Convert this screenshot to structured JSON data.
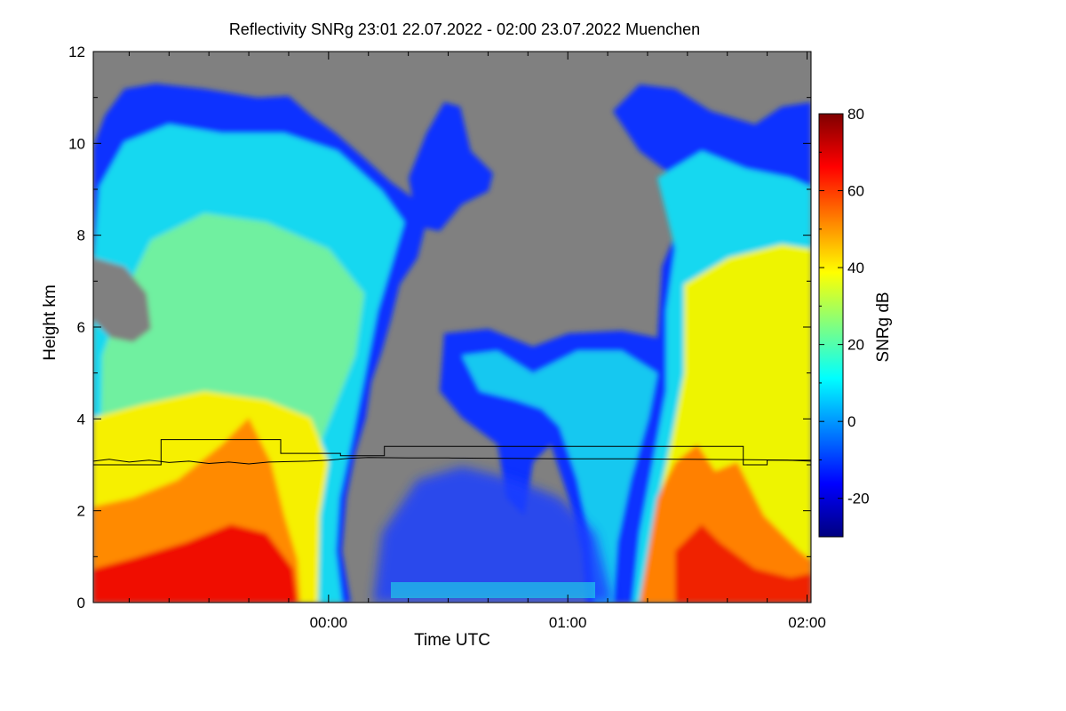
{
  "chart_data": {
    "type": "heatmap",
    "title": "Reflectivity SNRg   23:01 22.07.2022 - 02:00 23.07.2022 Muenchen",
    "xlabel": "Time UTC",
    "ylabel": "Height km",
    "xlim": [
      "23:01",
      "02:01"
    ],
    "ylim": [
      0,
      12
    ],
    "x_ticks": [
      {
        "label": "00:00",
        "value": "00:00"
      },
      {
        "label": "01:00",
        "value": "01:00"
      },
      {
        "label": "02:00",
        "value": "02:00"
      }
    ],
    "y_ticks": [
      {
        "label": "0",
        "value": 0
      },
      {
        "label": "2",
        "value": 2
      },
      {
        "label": "4",
        "value": 4
      },
      {
        "label": "6",
        "value": 6
      },
      {
        "label": "8",
        "value": 8
      },
      {
        "label": "10",
        "value": 10
      },
      {
        "label": "12",
        "value": 12
      }
    ],
    "colorbar": {
      "label": "SNRg dB",
      "range": [
        -30,
        80
      ],
      "ticks": [
        {
          "label": "-20",
          "value": -20
        },
        {
          "label": "0",
          "value": 0
        },
        {
          "label": "20",
          "value": 20
        },
        {
          "label": "40",
          "value": 40
        },
        {
          "label": "60",
          "value": 60
        },
        {
          "label": "80",
          "value": 80
        }
      ],
      "colormap": [
        "#00007f",
        "#0000ff",
        "#0080ff",
        "#00ffff",
        "#80ff80",
        "#ffff00",
        "#ff8000",
        "#ff0000",
        "#7f0000"
      ]
    },
    "no_data_color": "#808080",
    "overlay_lines": [
      {
        "style": "step",
        "color": "#000000",
        "points": [
          [
            "23:01",
            3.0
          ],
          [
            "23:18",
            3.0
          ],
          [
            "23:18",
            3.55
          ],
          [
            "23:48",
            3.55
          ],
          [
            "23:48",
            3.25
          ],
          [
            "00:03",
            3.25
          ],
          [
            "00:03",
            3.2
          ],
          [
            "00:14",
            3.2
          ],
          [
            "00:14",
            3.4
          ],
          [
            "01:44",
            3.4
          ],
          [
            "01:44",
            3.0
          ],
          [
            "01:50",
            3.0
          ],
          [
            "01:50",
            3.1
          ],
          [
            "02:01",
            3.1
          ]
        ]
      },
      {
        "style": "line",
        "color": "#000000",
        "points": [
          [
            "23:01",
            3.08
          ],
          [
            "23:05",
            3.12
          ],
          [
            "23:10",
            3.06
          ],
          [
            "23:15",
            3.1
          ],
          [
            "23:20",
            3.05
          ],
          [
            "23:25",
            3.08
          ],
          [
            "23:30",
            3.03
          ],
          [
            "23:35",
            3.06
          ],
          [
            "23:40",
            3.02
          ],
          [
            "23:45",
            3.06
          ],
          [
            "23:50",
            3.07
          ],
          [
            "23:55",
            3.08
          ],
          [
            "00:00",
            3.1
          ],
          [
            "00:05",
            3.14
          ],
          [
            "00:10",
            3.16
          ],
          [
            "00:20",
            3.15
          ],
          [
            "00:30",
            3.15
          ],
          [
            "00:45",
            3.14
          ],
          [
            "01:00",
            3.13
          ],
          [
            "01:15",
            3.13
          ],
          [
            "01:30",
            3.12
          ],
          [
            "01:45",
            3.11
          ],
          [
            "01:55",
            3.1
          ],
          [
            "02:01",
            3.08
          ]
        ]
      }
    ]
  }
}
